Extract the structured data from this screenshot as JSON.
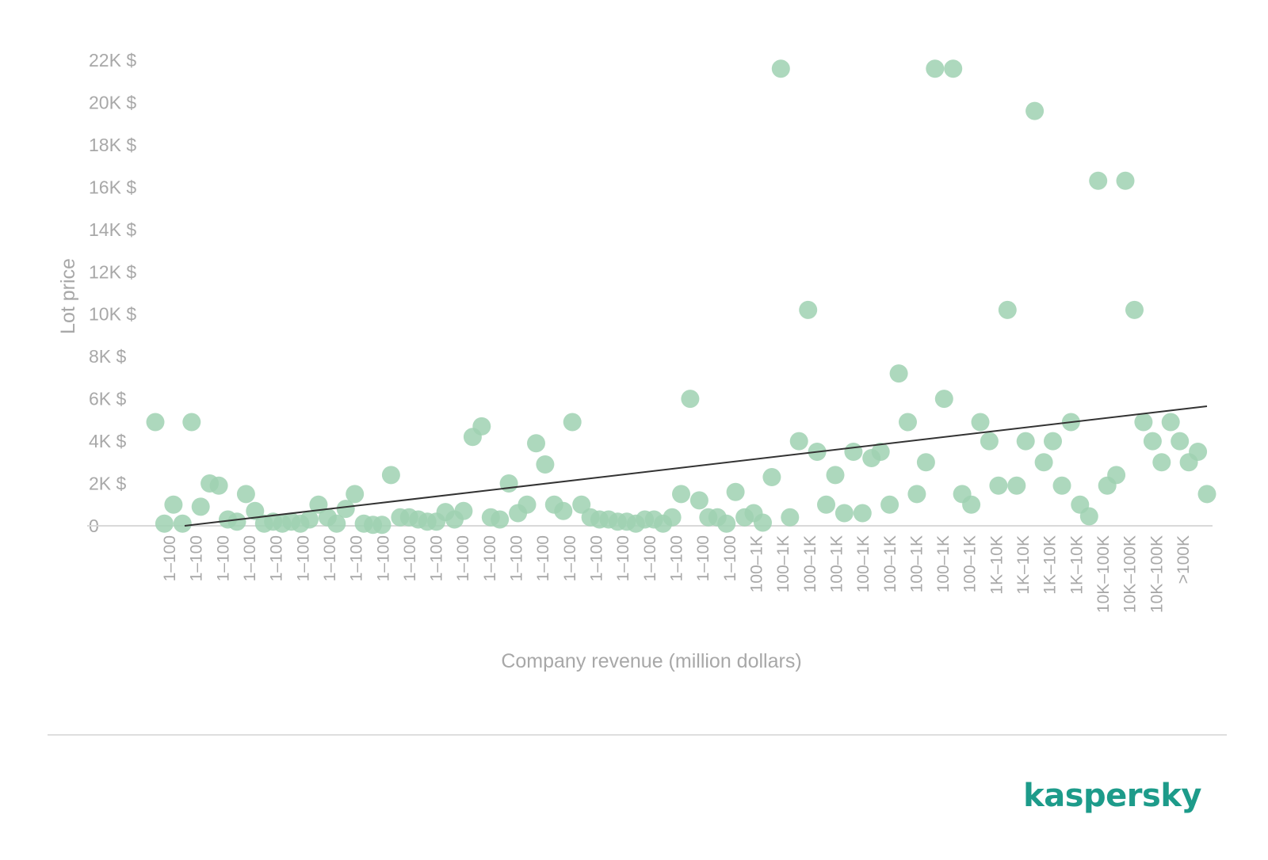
{
  "brand": {
    "logo_text": "kaspersky",
    "logo_color": "#1d9b8a"
  },
  "colors": {
    "point": "#9fd1b1",
    "trend": "#333333",
    "baseline": "#d9d9d9",
    "text": "#a8a8a8"
  },
  "chart_data": {
    "type": "scatter",
    "title": "",
    "xlabel": "Company revenue (million dollars)",
    "ylabel": "Lot price",
    "ylim": [
      0,
      22000
    ],
    "y_ticks": [
      {
        "value": 0,
        "label": "0"
      },
      {
        "value": 2000,
        "label": "2K $"
      },
      {
        "value": 4000,
        "label": "4K $"
      },
      {
        "value": 6000,
        "label": "6K $"
      },
      {
        "value": 8000,
        "label": "8K $"
      },
      {
        "value": 10000,
        "label": "10K $"
      },
      {
        "value": 12000,
        "label": "12K $"
      },
      {
        "value": 14000,
        "label": "14K $"
      },
      {
        "value": 16000,
        "label": "16K $"
      },
      {
        "value": 18000,
        "label": "18K $"
      },
      {
        "value": 20000,
        "label": "20K $"
      },
      {
        "value": 22000,
        "label": "22K $"
      }
    ],
    "x_tick_labels": [
      "1–100",
      "1–100",
      "1–100",
      "1–100",
      "1–100",
      "1–100",
      "1–100",
      "1–100",
      "1–100",
      "1–100",
      "1–100",
      "1–100",
      "1–100",
      "1–100",
      "1–100",
      "1–100",
      "1–100",
      "1–100",
      "1–100",
      "1–100",
      "1–100",
      "1–100",
      "100–1K",
      "100–1K",
      "100–1K",
      "100–1K",
      "100–1K",
      "100–1K",
      "100–1K",
      "100–1K",
      "100–1K",
      "1K–10K",
      "1K–10K",
      "1K–10K",
      "1K–10K",
      "10K–100K",
      "10K–100K",
      "10K–100K",
      ">100K"
    ],
    "values": [
      4900,
      100,
      1000,
      100,
      4900,
      900,
      2000,
      1900,
      300,
      200,
      1500,
      700,
      100,
      200,
      100,
      200,
      100,
      300,
      1000,
      400,
      100,
      800,
      1500,
      100,
      50,
      50,
      2400,
      400,
      400,
      300,
      200,
      200,
      650,
      300,
      700,
      4200,
      4700,
      400,
      300,
      2000,
      600,
      1000,
      3900,
      2900,
      1000,
      700,
      4900,
      1000,
      400,
      300,
      300,
      200,
      200,
      100,
      300,
      300,
      100,
      400,
      1500,
      6000,
      1200,
      400,
      400,
      100,
      1600,
      400,
      600,
      150,
      2300,
      21600,
      400,
      4000,
      10200,
      3500,
      1000,
      2400,
      600,
      3500,
      600,
      3200,
      3500,
      1000,
      7200,
      4900,
      1500,
      3000,
      21600,
      6000,
      21600,
      1500,
      1000,
      4900,
      4000,
      1900,
      10200,
      1900,
      4000,
      19600,
      3000,
      4000,
      1900,
      4900,
      1000,
      450,
      16300,
      1900,
      2400,
      16300,
      10200,
      4900,
      4000,
      3000,
      4900,
      4000,
      3000,
      3500,
      1500
    ],
    "trendline": {
      "start": 0,
      "end": 5650
    },
    "grid": false
  }
}
